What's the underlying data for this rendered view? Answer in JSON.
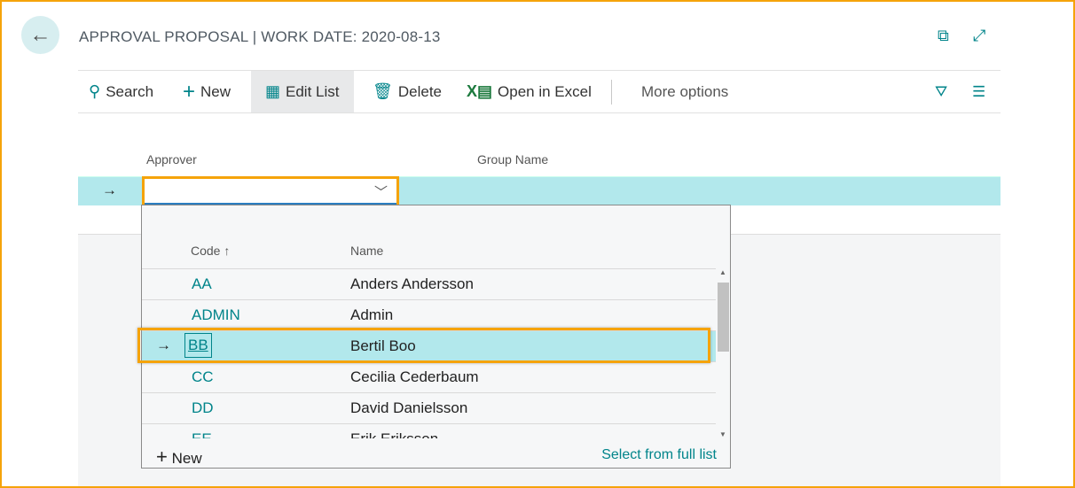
{
  "header": {
    "title": "APPROVAL PROPOSAL | WORK DATE: 2020-08-13",
    "back_icon": "arrow-left-icon",
    "open_new_icon": "open-in-new-window-icon",
    "expand_icon": "expand-icon"
  },
  "toolbar": {
    "search": "Search",
    "new": "New",
    "edit_list": "Edit List",
    "delete": "Delete",
    "open_excel": "Open in Excel",
    "more": "More options"
  },
  "columns": {
    "approver": "Approver",
    "group_name": "Group Name"
  },
  "approver_input": {
    "value": ""
  },
  "dropdown": {
    "col_code": "Code",
    "col_name": "Name",
    "sort_icon": "↑",
    "rows": [
      {
        "code": "AA",
        "name": "Anders Andersson"
      },
      {
        "code": "ADMIN",
        "name": "Admin"
      },
      {
        "code": "BB",
        "name": "Bertil Boo"
      },
      {
        "code": "CC",
        "name": "Cecilia Cederbaum"
      },
      {
        "code": "DD",
        "name": "David Danielsson"
      },
      {
        "code": "EE",
        "name": "Erik Eriksson"
      }
    ],
    "selected": "BB",
    "new": "New",
    "select_full": "Select from full list"
  },
  "colors": {
    "accent": "#00848a",
    "highlight": "#f5a30a",
    "selected_row": "#b2e8ec"
  }
}
